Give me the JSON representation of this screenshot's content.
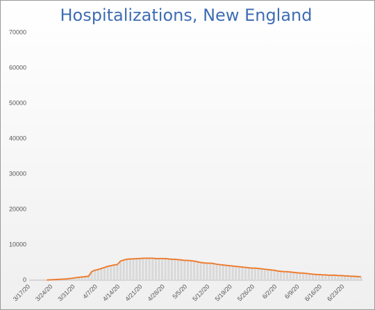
{
  "chart_data": {
    "type": "bar-line",
    "title": "Hospitalizations, New England",
    "categories": [
      "3/17/20",
      null,
      null,
      null,
      null,
      null,
      null,
      "3/24/20",
      null,
      null,
      null,
      null,
      null,
      null,
      "3/31/20",
      null,
      null,
      null,
      null,
      null,
      null,
      "4/7/20",
      null,
      null,
      null,
      null,
      null,
      null,
      "4/14/20",
      null,
      null,
      null,
      null,
      null,
      null,
      "4/21/20",
      null,
      null,
      null,
      null,
      null,
      null,
      "4/28/20",
      null,
      null,
      null,
      null,
      null,
      null,
      "5/5/20",
      null,
      null,
      null,
      null,
      null,
      null,
      "5/12/20",
      null,
      null,
      null,
      null,
      null,
      null,
      "5/19/20",
      null,
      null,
      null,
      null,
      null,
      null,
      "5/26/20",
      null,
      null,
      null,
      null,
      null,
      null,
      "6/2/20",
      null,
      null,
      null,
      null,
      null,
      null,
      "6/9/20",
      null,
      null,
      null,
      null,
      null,
      null,
      "6/16/20",
      null,
      null,
      null,
      null,
      null,
      null,
      "6/23/20",
      null,
      null,
      null,
      null,
      null
    ],
    "values": [
      null,
      null,
      null,
      null,
      null,
      50,
      100,
      150,
      200,
      250,
      300,
      350,
      450,
      550,
      700,
      800,
      900,
      1000,
      1100,
      2400,
      2800,
      3000,
      3300,
      3600,
      3900,
      4100,
      4300,
      4400,
      5400,
      5700,
      5900,
      6000,
      6000,
      6100,
      6100,
      6200,
      6200,
      6200,
      6200,
      6100,
      6100,
      6100,
      6100,
      6000,
      5900,
      5900,
      5800,
      5700,
      5600,
      5600,
      5500,
      5400,
      5200,
      5000,
      4900,
      4800,
      4800,
      4700,
      4500,
      4400,
      4300,
      4200,
      4100,
      4000,
      3900,
      3800,
      3700,
      3600,
      3500,
      3400,
      3400,
      3300,
      3200,
      3100,
      3000,
      2900,
      2800,
      2600,
      2500,
      2400,
      2400,
      2300,
      2200,
      2100,
      2000,
      2000,
      1900,
      1800,
      1700,
      1600,
      1600,
      1500,
      1500,
      1400,
      1400,
      1400,
      1300,
      1300,
      1200,
      1200,
      1100,
      1100,
      1000,
      1000
    ],
    "bar_color": "#d9d9d9",
    "line_color": "#ed7d31",
    "ylim": [
      0,
      70000
    ],
    "yticks": [
      0,
      10000,
      20000,
      30000,
      40000,
      50000,
      60000,
      70000
    ]
  }
}
